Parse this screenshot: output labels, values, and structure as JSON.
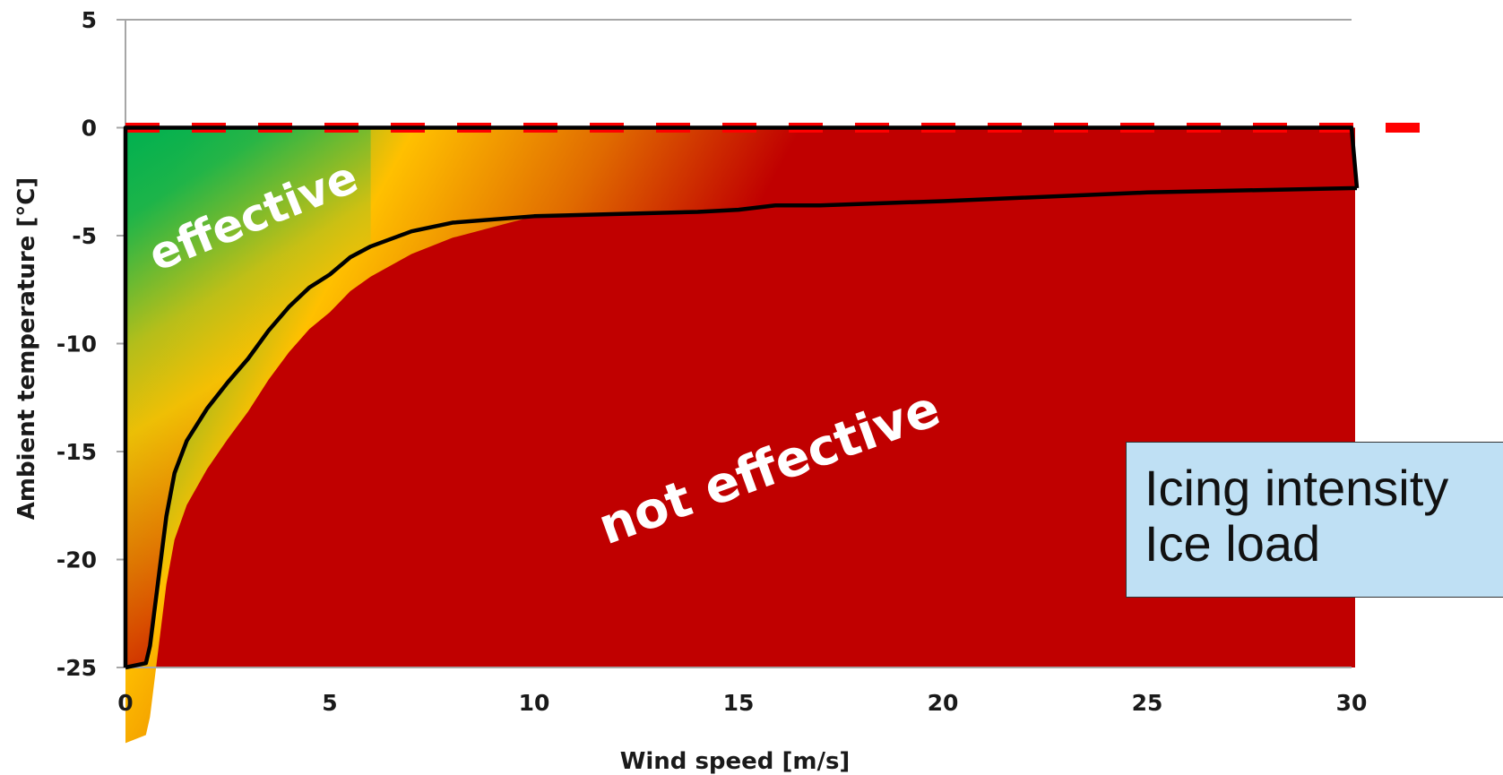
{
  "chart_data": {
    "type": "area",
    "xlabel": "Wind speed [m/s]",
    "ylabel": "Ambient temperature [°C]",
    "xlim": [
      0,
      30
    ],
    "ylim": [
      -25,
      5
    ],
    "xticks": [
      0,
      5,
      10,
      15,
      20,
      25,
      30
    ],
    "yticks": [
      5,
      0,
      -5,
      -10,
      -15,
      -20,
      -25
    ],
    "regions": [
      {
        "label": "effective",
        "color_start": "#00b050",
        "color_mid": "#ffc000"
      },
      {
        "label": "not effective",
        "color": "#c00000"
      }
    ],
    "boundary_curve": {
      "color": "#000000",
      "x": [
        0,
        0.5,
        0.6,
        0.8,
        1.0,
        1.2,
        1.5,
        2.0,
        2.5,
        3.0,
        3.5,
        4.0,
        4.5,
        5.0,
        5.5,
        6.0,
        7.0,
        8.0,
        10.0,
        12.0,
        14.0,
        15.0,
        15.9,
        17.0,
        20.0,
        25.0,
        30.0
      ],
      "y": [
        -25,
        -24.8,
        -24,
        -21,
        -18,
        -16,
        -14.5,
        -13,
        -11.8,
        -10.7,
        -9.4,
        -8.3,
        -7.4,
        -6.8,
        -6.0,
        -5.5,
        -4.8,
        -4.4,
        -4.1,
        -4.0,
        -3.9,
        -3.8,
        -3.6,
        -3.6,
        -3.4,
        -3.0,
        -2.8
      ]
    },
    "threshold_line": {
      "y": 0,
      "color": "#ff0000",
      "style": "dashed",
      "x_end": 32
    }
  },
  "info_box": {
    "line1": "Icing intensity",
    "line2": "Ice load"
  }
}
